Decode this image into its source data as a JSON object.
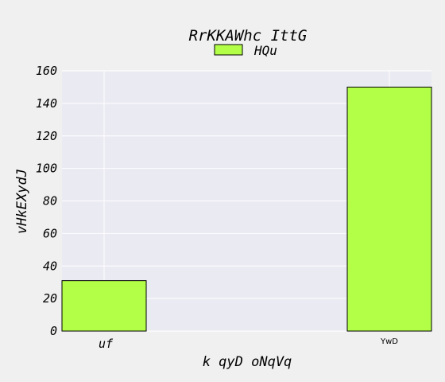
{
  "chart_data": {
    "type": "bar",
    "title": "RrKKAWhc IttG",
    "xlabel": "k qyD oNqVq",
    "ylabel": "vHkEXydJ",
    "categories": [
      "uf",
      "YwD"
    ],
    "series": [
      {
        "name": "HQu",
        "values": [
          31,
          150
        ],
        "color": "#b3ff47"
      }
    ],
    "ylim": [
      0,
      160
    ],
    "yticks": [
      "0",
      "20",
      "40",
      "60",
      "80",
      "100",
      "120",
      "140",
      "160"
    ],
    "grid": true,
    "legend_position": "top-center",
    "colors": {
      "plot_background": "#eaeaf2",
      "page_background": "#f0f0f0",
      "grid": "#ffffff",
      "bar_edge": "#000000"
    }
  }
}
